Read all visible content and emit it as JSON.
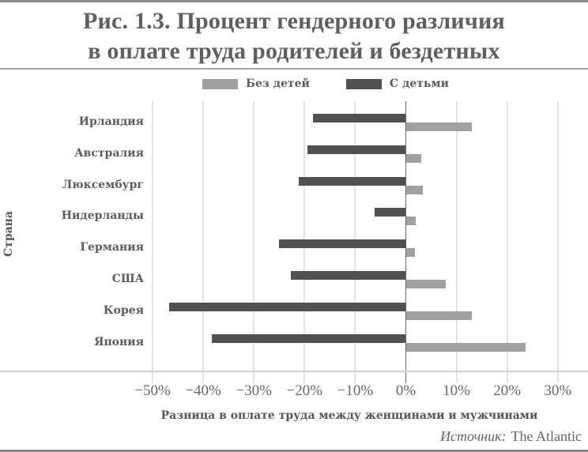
{
  "title": {
    "line1": "Рис. 1.3. Процент гендерного различия",
    "line2": "в оплате труда родителей и бездетных"
  },
  "legend": [
    {
      "label": "Без детей",
      "color": "#a0a0a0"
    },
    {
      "label": "С детьми",
      "color": "#505050"
    }
  ],
  "axis": {
    "ylabel": "Страна",
    "xlabel": "Разница в оплате труда между женщинами и мужчинами",
    "ticks": [
      "−50%",
      "−40%",
      "−30%",
      "−20%",
      "−10%",
      "0%",
      "10%",
      "20%",
      "30%"
    ]
  },
  "source": {
    "prefix": "Источник:",
    "name": "The Atlantic"
  },
  "chart_data": {
    "type": "bar",
    "orientation": "horizontal",
    "title": "Рис. 1.3. Процент гендерного различия в оплате труда родителей и бездетных",
    "xlabel": "Разница в оплате труда между женщинами и мужчинами",
    "ylabel": "Страна",
    "xlim": [
      -50,
      30
    ],
    "x_tick_labels": [
      "−50%",
      "−40%",
      "−30%",
      "−20%",
      "−10%",
      "0%",
      "10%",
      "20%",
      "30%"
    ],
    "grid": true,
    "legend_position": "top",
    "categories": [
      "Ирландия",
      "Австралия",
      "Люксембург",
      "Нидерланды",
      "Германия",
      "США",
      "Корея",
      "Япония"
    ],
    "series": [
      {
        "name": "Без детей",
        "color": "#a0a0a0",
        "values": [
          13,
          3,
          3.3,
          1.9,
          1.8,
          7.9,
          13,
          23.6
        ]
      },
      {
        "name": "С детьми",
        "color": "#505050",
        "values": [
          -18.4,
          -19.5,
          -21.1,
          -6.2,
          -25,
          -22.7,
          -46.7,
          -38.3
        ]
      }
    ]
  }
}
